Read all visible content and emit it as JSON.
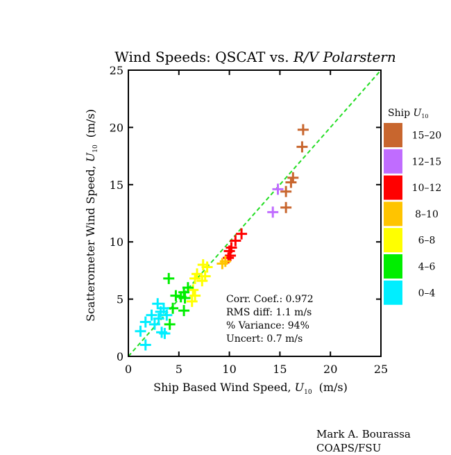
{
  "credit": {
    "name": "Mark A. Bourassa",
    "affiliation": "COAPS/FSU"
  },
  "chart_data": {
    "type": "scatter",
    "title_main": "Wind Speeds: QSCAT vs. ",
    "title_italic": "R/V Polarstern",
    "xlabel_main": "Ship Based Wind Speed, ",
    "xlabel_unit": "(m/s)",
    "ylabel_main": "Scatterometer Wind Speed, ",
    "ylabel_unit": "(m/s)",
    "var_symbol": "U",
    "var_subscript": "10",
    "xlim": [
      0,
      25
    ],
    "ylim": [
      0,
      25
    ],
    "x_ticks": [
      "0",
      "5",
      "10",
      "15",
      "20",
      "25"
    ],
    "y_ticks": [
      "0",
      "5",
      "10",
      "15",
      "20",
      "25"
    ],
    "reference_line": {
      "type": "1:1",
      "color": "#22dd22",
      "style": "dashed"
    },
    "stats": [
      "Corr. Coef.: 0.972",
      "RMS diff: 1.1 m/s",
      "% Variance: 94%",
      "Uncert:  0.7 m/s"
    ],
    "legend": {
      "title": "Ship ",
      "placement": "right",
      "entries": [
        {
          "label": "15–20",
          "color": "#c8662e"
        },
        {
          "label": "12–15",
          "color": "#c06cff"
        },
        {
          "label": "10–12",
          "color": "#ff0000"
        },
        {
          "label": "8–10",
          "color": "#ffc400"
        },
        {
          "label": "6–8",
          "color": "#ffff00"
        },
        {
          "label": "4–6",
          "color": "#00ee00"
        },
        {
          "label": "0–4",
          "color": "#00eeff"
        }
      ]
    },
    "series": [
      {
        "category": "15–20",
        "color": "#c8662e",
        "points": [
          [
            17.3,
            19.8
          ],
          [
            17.2,
            18.3
          ],
          [
            16.3,
            15.6
          ],
          [
            16.1,
            15.2
          ],
          [
            15.6,
            14.4
          ],
          [
            15.6,
            13.0
          ]
        ]
      },
      {
        "category": "12–15",
        "color": "#c06cff",
        "points": [
          [
            14.8,
            14.6
          ],
          [
            14.3,
            12.6
          ]
        ]
      },
      {
        "category": "10–12",
        "color": "#ff0000",
        "points": [
          [
            11.2,
            10.7
          ],
          [
            10.6,
            10.1
          ],
          [
            10.2,
            9.5
          ],
          [
            10.0,
            9.2
          ],
          [
            10.1,
            8.8
          ],
          [
            9.9,
            8.6
          ]
        ]
      },
      {
        "category": "8–10",
        "color": "#ffc400",
        "points": [
          [
            9.6,
            8.3
          ],
          [
            9.3,
            8.1
          ]
        ]
      },
      {
        "category": "6–8",
        "color": "#ffff00",
        "points": [
          [
            7.4,
            8.0
          ],
          [
            7.8,
            7.8
          ],
          [
            6.8,
            7.2
          ],
          [
            7.6,
            7.0
          ],
          [
            6.6,
            6.8
          ],
          [
            7.3,
            6.6
          ],
          [
            6.4,
            5.8
          ],
          [
            6.6,
            5.3
          ],
          [
            6.3,
            4.8
          ]
        ]
      },
      {
        "category": "4–6",
        "color": "#00ee00",
        "points": [
          [
            4.0,
            6.8
          ],
          [
            5.9,
            6.0
          ],
          [
            5.5,
            5.6
          ],
          [
            4.7,
            5.3
          ],
          [
            5.2,
            5.2
          ],
          [
            5.6,
            5.1
          ],
          [
            4.4,
            4.2
          ],
          [
            5.5,
            4.0
          ],
          [
            4.1,
            2.8
          ]
        ]
      },
      {
        "category": "0–4",
        "color": "#00eeff",
        "points": [
          [
            2.9,
            4.6
          ],
          [
            3.5,
            4.2
          ],
          [
            3.2,
            3.9
          ],
          [
            2.3,
            3.6
          ],
          [
            3.8,
            3.6
          ],
          [
            3.0,
            3.3
          ],
          [
            1.7,
            3.0
          ],
          [
            2.6,
            2.8
          ],
          [
            1.2,
            2.2
          ],
          [
            3.3,
            2.1
          ],
          [
            3.6,
            2.0
          ],
          [
            1.7,
            1.0
          ]
        ]
      }
    ]
  }
}
